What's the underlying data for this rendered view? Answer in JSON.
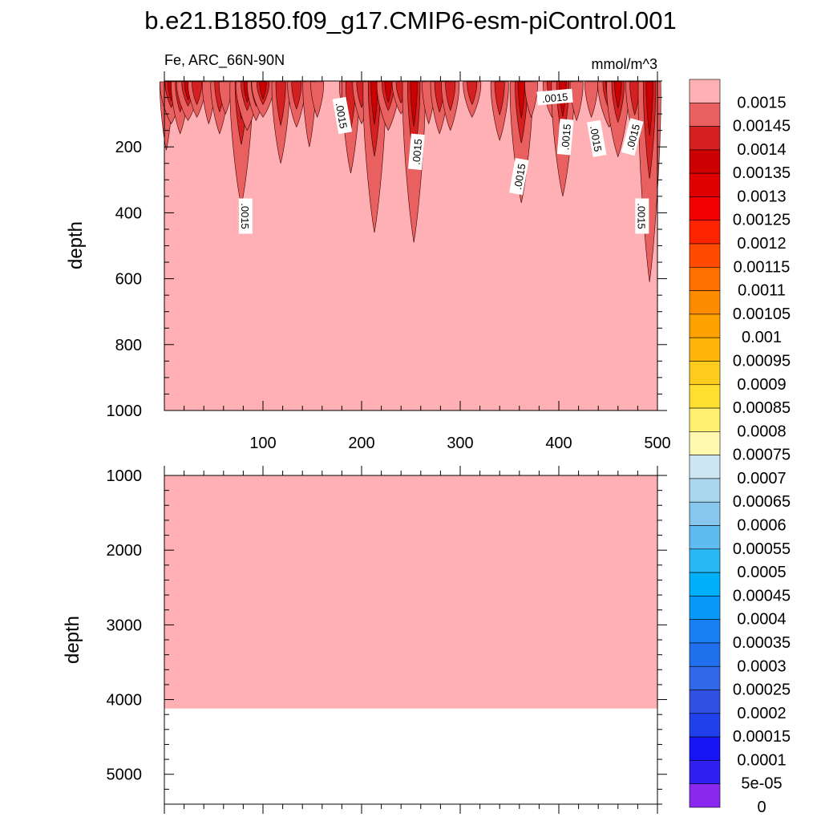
{
  "chart_data": {
    "type": "contour",
    "title": "b.e21.B1850.f09_g17.CMIP6-esm-piControl.001",
    "left_string": "Fe, ARC_66N-90N",
    "right_string": "mmol/m^3",
    "ylabel": "depth",
    "xlim": [
      0,
      500
    ],
    "colorbar": {
      "levels": [
        "0.0015",
        "0.00145",
        "0.0014",
        "0.00135",
        "0.0013",
        "0.00125",
        "0.0012",
        "0.00115",
        "0.0011",
        "0.00105",
        "0.001",
        "0.00095",
        "0.0009",
        "0.00085",
        "0.0008",
        "0.00075",
        "0.0007",
        "0.00065",
        "0.0006",
        "0.00055",
        "0.0005",
        "0.00045",
        "0.0004",
        "0.00035",
        "0.0003",
        "0.00025",
        "0.0002",
        "0.00015",
        "0.0001",
        "5e-05",
        "0"
      ],
      "colors": [
        "#ffb0b4",
        "#e86060",
        "#d42020",
        "#cc0000",
        "#e00000",
        "#f20000",
        "#ff2400",
        "#ff4a00",
        "#ff7000",
        "#ff8c00",
        "#ffa200",
        "#ffb40c",
        "#ffcc1e",
        "#ffe030",
        "#fff070",
        "#fff9b0",
        "#cce6f2",
        "#aad8f0",
        "#88c8ee",
        "#60bcf0",
        "#28b8f4",
        "#00b0f8",
        "#0898f8",
        "#1880f4",
        "#2070ee",
        "#3068e8",
        "#3050e2",
        "#2040ec",
        "#1414f4",
        "#3020f0",
        "#8a28f0"
      ]
    },
    "upper_panel": {
      "ylim": [
        0,
        1000
      ],
      "y_ticks": [
        "200",
        "400",
        "600",
        "800",
        "1000"
      ],
      "x_ticks": [
        "100",
        "200",
        "300",
        "400",
        "500"
      ],
      "fill_value": "0.0015",
      "contour_labels": [
        ".0015",
        ".0015",
        ".0015",
        ".0015",
        ".0015",
        ".0015",
        ".0015",
        ".0015",
        ".0015"
      ],
      "plumes": [
        {
          "x": 2,
          "d": 210,
          "c": 1
        },
        {
          "x": 7,
          "d": 130,
          "c": 3
        },
        {
          "x": 16,
          "d": 160,
          "c": 2
        },
        {
          "x": 24,
          "d": 120,
          "c": 3
        },
        {
          "x": 33,
          "d": 110,
          "c": 2
        },
        {
          "x": 45,
          "d": 130,
          "c": 1
        },
        {
          "x": 56,
          "d": 160,
          "c": 2
        },
        {
          "x": 62,
          "d": 100,
          "c": 1
        },
        {
          "x": 78,
          "d": 380,
          "c": 3
        },
        {
          "x": 84,
          "d": 150,
          "c": 3
        },
        {
          "x": 93,
          "d": 120,
          "c": 2
        },
        {
          "x": 100,
          "d": 110,
          "c": 3
        },
        {
          "x": 118,
          "d": 250,
          "c": 2
        },
        {
          "x": 134,
          "d": 140,
          "c": 2
        },
        {
          "x": 147,
          "d": 200,
          "c": 1
        },
        {
          "x": 155,
          "d": 110,
          "c": 1
        },
        {
          "x": 184,
          "d": 130,
          "c": 1
        },
        {
          "x": 189,
          "d": 280,
          "c": 2
        },
        {
          "x": 200,
          "d": 130,
          "c": 2
        },
        {
          "x": 213,
          "d": 460,
          "c": 3
        },
        {
          "x": 227,
          "d": 150,
          "c": 3
        },
        {
          "x": 240,
          "d": 100,
          "c": 2
        },
        {
          "x": 253,
          "d": 490,
          "c": 3
        },
        {
          "x": 268,
          "d": 130,
          "c": 1
        },
        {
          "x": 279,
          "d": 160,
          "c": 2
        },
        {
          "x": 290,
          "d": 150,
          "c": 2
        },
        {
          "x": 312,
          "d": 110,
          "c": 2
        },
        {
          "x": 340,
          "d": 180,
          "c": 2
        },
        {
          "x": 362,
          "d": 370,
          "c": 3
        },
        {
          "x": 372,
          "d": 110,
          "c": 1
        },
        {
          "x": 393,
          "d": 110,
          "c": 2
        },
        {
          "x": 404,
          "d": 350,
          "c": 3
        },
        {
          "x": 418,
          "d": 120,
          "c": 1
        },
        {
          "x": 433,
          "d": 110,
          "c": 1
        },
        {
          "x": 451,
          "d": 140,
          "c": 3
        },
        {
          "x": 460,
          "d": 230,
          "c": 3
        },
        {
          "x": 477,
          "d": 180,
          "c": 2
        },
        {
          "x": 492,
          "d": 610,
          "c": 3
        }
      ]
    },
    "lower_panel": {
      "ylim": [
        1000,
        5400
      ],
      "y_ticks": [
        "1000",
        "2000",
        "3000",
        "4000",
        "5000"
      ],
      "fill_value": "0.0015",
      "fill_bottom_depth": 4120
    }
  }
}
